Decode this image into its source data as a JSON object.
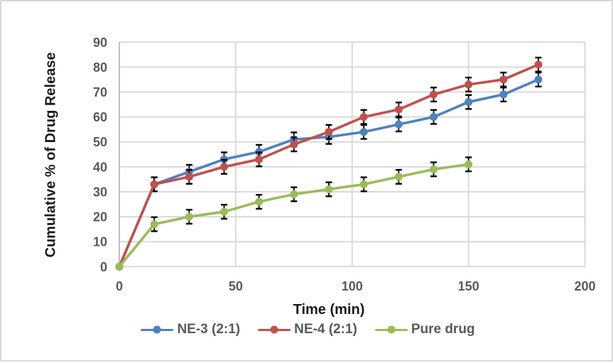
{
  "colors": {
    "background": "#ffffff",
    "frame_border": "#d9d9d9",
    "grid": "#d9d9d9",
    "axis_line": "#bfbfbf",
    "tick_label": "#595959",
    "axis_title": "#1a1a1a",
    "legend_text": "#595959",
    "error_bar": "#000000"
  },
  "chart_data": {
    "type": "line",
    "title": "",
    "xlabel": "Time (min)",
    "ylabel": "Cumulative % of Drug Release",
    "xlim": [
      0,
      200
    ],
    "ylim": [
      0,
      90
    ],
    "x_ticks": [
      0,
      50,
      100,
      150,
      200
    ],
    "y_ticks": [
      0,
      10,
      20,
      30,
      40,
      50,
      60,
      70,
      80,
      90
    ],
    "grid": true,
    "marker": "circle",
    "legend_position": "bottom",
    "error_bar_units": 2.8,
    "x": [
      0,
      15,
      30,
      45,
      60,
      75,
      90,
      105,
      120,
      135,
      150,
      165,
      180
    ],
    "series": [
      {
        "name": "NE-3 (2:1)",
        "color": "#4F81BD",
        "values": [
          0,
          33,
          38,
          43,
          46,
          51,
          52,
          54,
          57,
          60,
          66,
          69,
          75
        ]
      },
      {
        "name": "NE-4 (2:1)",
        "color": "#C0504D",
        "values": [
          0,
          33,
          36,
          40,
          43,
          49,
          54,
          60,
          63,
          69,
          73,
          75,
          81
        ]
      },
      {
        "name": "Pure drug",
        "color": "#9BBB59",
        "values": [
          0,
          17,
          20,
          22,
          26,
          29,
          31,
          33,
          36,
          39,
          41
        ]
      }
    ]
  }
}
